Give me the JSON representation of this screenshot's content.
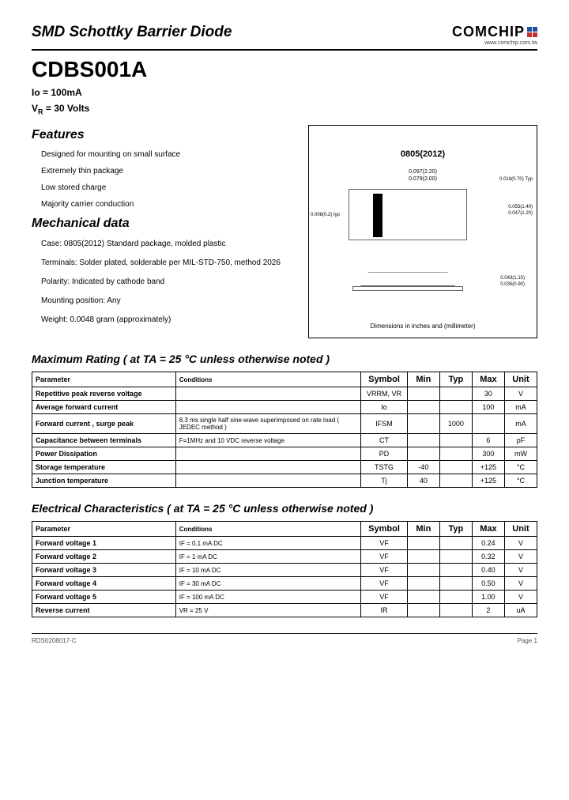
{
  "header": {
    "title": "SMD Schottky Barrier Diode",
    "logo_text": "COMCHIP",
    "logo_url": "www.comchip.com.tw",
    "logo_colors": {
      "top": "#2050a0",
      "bottom": "#c03030"
    }
  },
  "part": {
    "number": "CDBS001A",
    "io": "Io = 100mA",
    "vr": "V",
    "vr_sub": "R",
    "vr_val": " = 30 Volts"
  },
  "features": {
    "title": "Features",
    "items": [
      "Designed for mounting on small surface",
      "Extremely thin package",
      "Low stored charge",
      "Majority carrier conduction"
    ]
  },
  "mechanical": {
    "title": "Mechanical data",
    "items": [
      "Case:  0805(2012) Standard package, molded plastic",
      "Terminals: Solder plated, solderable per MIL-STD-750, method 2026",
      "Polarity: Indicated by cathode band",
      "Mounting position: Any",
      "Weight: 0.0048 gram (approximately)"
    ]
  },
  "diagram": {
    "pkg_label": "0805(2012)",
    "dim_top1": "0.097(2.20)",
    "dim_top2": "0.079(2.00)",
    "dim_left": "0.008(0.2) typ",
    "dim_r1": "0.018(0.70) Typ",
    "dim_r2a": "0.055(1.40)",
    "dim_r2b": "0.047(1.20)",
    "dim_s1": "0.043(1.10)",
    "dim_s2": "0.035(0.90)",
    "note": "Dimensions in inches and (millimeter)"
  },
  "max_rating": {
    "title": "Maximum Rating  ( at  TA = 25 °C  unless  otherwise noted )",
    "headers": [
      "Parameter",
      "Conditions",
      "Symbol",
      "Min",
      "Typ",
      "Max",
      "Unit"
    ],
    "rows": [
      {
        "param": "Repetitive peak reverse voltage",
        "cond": "",
        "sym": "VRRM, VR",
        "min": "",
        "typ": "",
        "max": "30",
        "unit": "V"
      },
      {
        "param": "Average forward current",
        "cond": "",
        "sym": "Io",
        "min": "",
        "typ": "",
        "max": "100",
        "unit": "mA"
      },
      {
        "param": "Forward current , surge peak",
        "cond": "8.3 ms single half sine-wave superimposed on rate load ( JEDEC method )",
        "sym": "IFSM",
        "min": "",
        "typ": "1000",
        "max": "",
        "unit": "mA"
      },
      {
        "param": "Capacitance between terminals",
        "cond": "F=1MHz and 10 VDC reverse voltage",
        "sym": "CT",
        "min": "",
        "typ": "",
        "max": "6",
        "unit": "pF"
      },
      {
        "param": "Power Dissipation",
        "cond": "",
        "sym": "PD",
        "min": "",
        "typ": "",
        "max": "300",
        "unit": "mW"
      },
      {
        "param": "Storage temperature",
        "cond": "",
        "sym": "TSTG",
        "min": "-40",
        "typ": "",
        "max": "+125",
        "unit": "°C"
      },
      {
        "param": "Junction temperature",
        "cond": "",
        "sym": "Tj",
        "min": "40",
        "typ": "",
        "max": "+125",
        "unit": "°C"
      }
    ]
  },
  "elec": {
    "title": "Electrical Characteristics  ( at  TA = 25 °C  unless otherwise  noted )",
    "headers": [
      "Parameter",
      "Conditions",
      "Symbol",
      "Min",
      "Typ",
      "Max",
      "Unit"
    ],
    "rows": [
      {
        "param": "Forward voltage 1",
        "cond": "IF = 0.1 mA DC",
        "sym": "VF",
        "min": "",
        "typ": "",
        "max": "0.24",
        "unit": "V"
      },
      {
        "param": "Forward voltage 2",
        "cond": "IF = 1 mA DC",
        "sym": "VF",
        "min": "",
        "typ": "",
        "max": "0.32",
        "unit": "V"
      },
      {
        "param": "Forward voltage 3",
        "cond": "IF = 10 mA DC",
        "sym": "VF",
        "min": "",
        "typ": "",
        "max": "0.40",
        "unit": "V"
      },
      {
        "param": "Forward voltage 4",
        "cond": "IF = 30 mA DC",
        "sym": "VF",
        "min": "",
        "typ": "",
        "max": "0.50",
        "unit": "V"
      },
      {
        "param": "Forward voltage 5",
        "cond": "IF = 100 mA DC",
        "sym": "VF",
        "min": "",
        "typ": "",
        "max": "1.00",
        "unit": "V"
      },
      {
        "param": "Reverse current",
        "cond": "VR = 25 V",
        "sym": "IR",
        "min": "",
        "typ": "",
        "max": "2",
        "unit": "uA"
      }
    ]
  },
  "footer": {
    "left": "RDS0208017-C",
    "right": "Page 1"
  }
}
